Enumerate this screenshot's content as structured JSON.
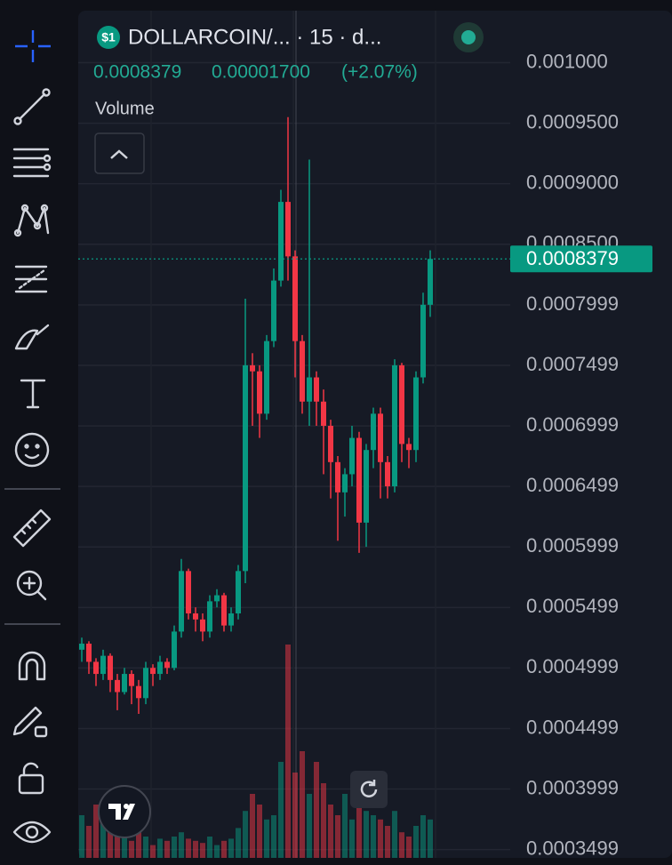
{
  "header": {
    "icon_text": "$1",
    "symbol": "DOLLARCOIN/... · 15 · d...",
    "change": "0.00001700",
    "change_percent": "(+2.07%)",
    "volume_label": "Volume"
  },
  "chart_data": {
    "type": "candlestick",
    "open": [
      0.000515,
      0.00052,
      0.000505,
      0.000495,
      0.00051,
      0.00049,
      0.00048,
      0.000495,
      0.000485,
      0.000475,
      0.0005,
      0.000495,
      0.000505,
      0.0005,
      0.00053,
      0.00058,
      0.000545,
      0.00054,
      0.00053,
      0.000555,
      0.00056,
      0.000535,
      0.000545,
      0.00058,
      0.00075,
      0.000745,
      0.00071,
      0.00077,
      0.00082,
      0.000885,
      0.00084,
      0.00077,
      0.00072,
      0.00074,
      0.00072,
      0.0007,
      0.00067,
      0.000645,
      0.00066,
      0.00069,
      0.00062,
      0.00068,
      0.00071,
      0.00067,
      0.00065,
      0.00075,
      0.000685,
      0.00068,
      0.00074,
      0.0008
    ],
    "high": [
      0.000525,
      0.000522,
      0.000508,
      0.000515,
      0.000512,
      0.000495,
      0.0005,
      0.000498,
      0.00049,
      0.000505,
      0.000503,
      0.00051,
      0.000508,
      0.000535,
      0.00059,
      0.000582,
      0.00055,
      0.000545,
      0.00056,
      0.000565,
      0.000562,
      0.00055,
      0.000585,
      0.000805,
      0.00076,
      0.00075,
      0.000775,
      0.00083,
      0.000895,
      0.000955,
      0.000845,
      0.000775,
      0.00092,
      0.000745,
      0.00073,
      0.000705,
      0.000675,
      0.000665,
      0.0007,
      0.000695,
      0.000685,
      0.000715,
      0.000715,
      0.000675,
      0.000755,
      0.000752,
      0.00069,
      0.000745,
      0.00081,
      0.000845
    ],
    "low": [
      0.000505,
      0.000495,
      0.000485,
      0.00049,
      0.00048,
      0.000465,
      0.000478,
      0.00047,
      0.000462,
      0.00047,
      0.000485,
      0.00049,
      0.000495,
      0.000498,
      0.000525,
      0.00054,
      0.00053,
      0.000522,
      0.000525,
      0.00055,
      0.00053,
      0.00053,
      0.00054,
      0.00057,
      0.0007,
      0.00069,
      0.000705,
      0.000765,
      0.000815,
      0.00082,
      0.00074,
      0.00071,
      0.0007,
      0.0007,
      0.00066,
      0.00064,
      0.000605,
      0.000625,
      0.00065,
      0.000595,
      0.0006,
      0.000665,
      0.00064,
      0.00064,
      0.000645,
      0.00067,
      0.000665,
      0.00067,
      0.000735,
      0.00079
    ],
    "close": [
      0.00052,
      0.000505,
      0.000495,
      0.00051,
      0.00049,
      0.00048,
      0.000495,
      0.000485,
      0.000475,
      0.0005,
      0.000495,
      0.000505,
      0.0005,
      0.00053,
      0.00058,
      0.000545,
      0.00054,
      0.00053,
      0.000555,
      0.00056,
      0.000535,
      0.000545,
      0.00058,
      0.00075,
      0.000745,
      0.00071,
      0.00077,
      0.00082,
      0.000885,
      0.00084,
      0.00077,
      0.00072,
      0.00074,
      0.00072,
      0.0007,
      0.00067,
      0.000645,
      0.00066,
      0.00069,
      0.00062,
      0.00068,
      0.00071,
      0.00067,
      0.00065,
      0.00075,
      0.000685,
      0.00068,
      0.00074,
      0.0008,
      0.0008379
    ],
    "volume": [
      20,
      15,
      25,
      18,
      12,
      10,
      14,
      8,
      12,
      10,
      6,
      9,
      8,
      10,
      12,
      9,
      8,
      7,
      10,
      6,
      8,
      9,
      14,
      22,
      30,
      25,
      18,
      20,
      45,
      100,
      40,
      50,
      30,
      45,
      35,
      25,
      20,
      30,
      18,
      28,
      22,
      20,
      18,
      15,
      22,
      12,
      10,
      15,
      20,
      18
    ],
    "last_price": 0.0008379,
    "ylim": [
      0.000343,
      0.001043
    ],
    "yticks": [
      {
        "value": 0.001,
        "label": "0.001000"
      },
      {
        "value": 0.00095,
        "label": "0.0009500"
      },
      {
        "value": 0.0009,
        "label": "0.0009000"
      },
      {
        "value": 0.00085,
        "label": "0.0008500"
      },
      {
        "value": 0.0007999,
        "label": "0.0007999"
      },
      {
        "value": 0.0007499,
        "label": "0.0007499"
      },
      {
        "value": 0.0006999,
        "label": "0.0006999"
      },
      {
        "value": 0.0006499,
        "label": "0.0006499"
      },
      {
        "value": 0.0005999,
        "label": "0.0005999"
      },
      {
        "value": 0.0005499,
        "label": "0.0005499"
      },
      {
        "value": 0.0004999,
        "label": "0.0004999"
      },
      {
        "value": 0.0004499,
        "label": "0.0004499"
      },
      {
        "value": 0.0003999,
        "label": "0.0003999"
      },
      {
        "value": 0.0003499,
        "label": "0.0003499"
      }
    ],
    "up_color": "#089981",
    "down_color": "#f23645",
    "grid": true
  }
}
